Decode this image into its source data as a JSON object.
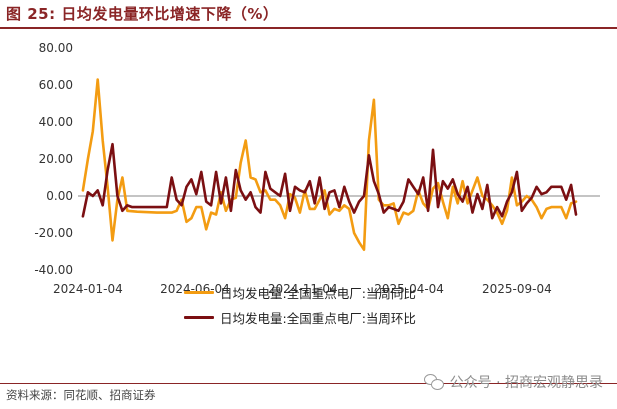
{
  "header": {
    "title": "图 25: 日均发电量环比增速下降（%）"
  },
  "footer": {
    "source": "资料来源：同花顺、招商证券",
    "watermark": "公众号 · 招商宏观静思录"
  },
  "chart_data": {
    "type": "line",
    "title": "",
    "xlabel": "",
    "ylabel": "",
    "ylim": [
      -40,
      80
    ],
    "yticks": [
      "-40.00",
      "-20.00",
      "0.00",
      "20.00",
      "40.00",
      "60.00",
      "80.00"
    ],
    "xticks": [
      "2024-01-04",
      "2024-06-04",
      "2024-11-04",
      "2025-04-04",
      "2025-09-04"
    ],
    "xlim": [
      "2023-12-21",
      "2025-12-31"
    ],
    "legend_position": "bottom",
    "grid": false,
    "series": [
      {
        "name": "日均发电量:全国重点电厂:当周同比",
        "color": "#f39c12",
        "points": [
          [
            "2023-12-28",
            3
          ],
          [
            "2024-01-04",
            20
          ],
          [
            "2024-01-11",
            35
          ],
          [
            "2024-01-18",
            63
          ],
          [
            "2024-01-25",
            30
          ],
          [
            "2024-02-01",
            5
          ],
          [
            "2024-02-08",
            -24
          ],
          [
            "2024-02-15",
            -2
          ],
          [
            "2024-02-22",
            10
          ],
          [
            "2024-02-29",
            -8
          ],
          [
            "2024-03-14",
            -8.5
          ],
          [
            "2024-04-11",
            -9
          ],
          [
            "2024-05-02",
            -9
          ],
          [
            "2024-05-09",
            -8
          ],
          [
            "2024-05-16",
            -2
          ],
          [
            "2024-05-23",
            -14
          ],
          [
            "2024-05-30",
            -12
          ],
          [
            "2024-06-06",
            -6
          ],
          [
            "2024-06-13",
            -6
          ],
          [
            "2024-06-20",
            -18
          ],
          [
            "2024-06-27",
            -9
          ],
          [
            "2024-07-04",
            -10
          ],
          [
            "2024-07-11",
            2
          ],
          [
            "2024-07-18",
            -8
          ],
          [
            "2024-07-25",
            -2
          ],
          [
            "2024-08-01",
            -1
          ],
          [
            "2024-08-08",
            18
          ],
          [
            "2024-08-15",
            30
          ],
          [
            "2024-08-22",
            10
          ],
          [
            "2024-08-29",
            9
          ],
          [
            "2024-09-05",
            2
          ],
          [
            "2024-09-12",
            3
          ],
          [
            "2024-09-19",
            -2
          ],
          [
            "2024-09-26",
            -2
          ],
          [
            "2024-10-03",
            -5
          ],
          [
            "2024-10-10",
            -12
          ],
          [
            "2024-10-17",
            1
          ],
          [
            "2024-10-24",
            -1
          ],
          [
            "2024-10-31",
            -9
          ],
          [
            "2024-11-07",
            3
          ],
          [
            "2024-11-14",
            -7
          ],
          [
            "2024-11-21",
            -7
          ],
          [
            "2024-11-28",
            -2
          ],
          [
            "2024-12-05",
            3
          ],
          [
            "2024-12-12",
            -10
          ],
          [
            "2024-12-19",
            -7
          ],
          [
            "2024-12-26",
            -8
          ],
          [
            "2025-01-02",
            -5
          ],
          [
            "2025-01-09",
            -7
          ],
          [
            "2025-01-16",
            -20
          ],
          [
            "2025-01-23",
            -25
          ],
          [
            "2025-01-30",
            -29
          ],
          [
            "2025-02-06",
            30
          ],
          [
            "2025-02-13",
            52
          ],
          [
            "2025-02-20",
            -2
          ],
          [
            "2025-02-27",
            -5
          ],
          [
            "2025-03-06",
            -5
          ],
          [
            "2025-03-13",
            -4
          ],
          [
            "2025-03-20",
            -15
          ],
          [
            "2025-03-27",
            -9
          ],
          [
            "2025-04-03",
            -10
          ],
          [
            "2025-04-10",
            -8
          ],
          [
            "2025-04-17",
            3
          ],
          [
            "2025-04-24",
            -4
          ],
          [
            "2025-05-01",
            -7
          ],
          [
            "2025-05-08",
            4
          ],
          [
            "2025-05-15",
            7
          ],
          [
            "2025-05-22",
            -3
          ],
          [
            "2025-05-29",
            -12
          ],
          [
            "2025-06-05",
            5
          ],
          [
            "2025-06-12",
            -4
          ],
          [
            "2025-06-19",
            8
          ],
          [
            "2025-06-26",
            -4
          ],
          [
            "2025-07-03",
            3
          ],
          [
            "2025-07-10",
            10
          ],
          [
            "2025-07-17",
            0
          ],
          [
            "2025-07-24",
            -2
          ],
          [
            "2025-07-31",
            -5
          ],
          [
            "2025-08-07",
            -9
          ],
          [
            "2025-08-14",
            -15
          ],
          [
            "2025-08-21",
            -8
          ],
          [
            "2025-08-28",
            10
          ],
          [
            "2025-09-04",
            -5
          ],
          [
            "2025-09-11",
            -3
          ],
          [
            "2025-09-18",
            0
          ],
          [
            "2025-09-25",
            -2
          ],
          [
            "2025-10-02",
            -6
          ],
          [
            "2025-10-09",
            -12
          ],
          [
            "2025-10-16",
            -7
          ],
          [
            "2025-10-23",
            -6
          ],
          [
            "2025-11-06",
            -6
          ],
          [
            "2025-11-13",
            -12
          ],
          [
            "2025-11-20",
            -4
          ],
          [
            "2025-11-27",
            -3
          ]
        ]
      },
      {
        "name": "日均发电量:全国重点电厂:当周环比",
        "color": "#7b0f12",
        "points": [
          [
            "2023-12-28",
            -11
          ],
          [
            "2024-01-04",
            2
          ],
          [
            "2024-01-11",
            0
          ],
          [
            "2024-01-18",
            3
          ],
          [
            "2024-01-25",
            -5
          ],
          [
            "2024-02-01",
            14
          ],
          [
            "2024-02-08",
            28
          ],
          [
            "2024-02-15",
            0
          ],
          [
            "2024-02-22",
            -8
          ],
          [
            "2024-02-29",
            -5
          ],
          [
            "2024-03-07",
            -6
          ],
          [
            "2024-04-25",
            -6
          ],
          [
            "2024-05-02",
            10
          ],
          [
            "2024-05-09",
            -2
          ],
          [
            "2024-05-16",
            -5
          ],
          [
            "2024-05-23",
            5
          ],
          [
            "2024-05-30",
            9
          ],
          [
            "2024-06-06",
            1
          ],
          [
            "2024-06-13",
            13
          ],
          [
            "2024-06-20",
            -3
          ],
          [
            "2024-06-27",
            -5
          ],
          [
            "2024-07-04",
            13
          ],
          [
            "2024-07-11",
            -4
          ],
          [
            "2024-07-18",
            10
          ],
          [
            "2024-07-25",
            -8
          ],
          [
            "2024-08-01",
            14
          ],
          [
            "2024-08-08",
            3
          ],
          [
            "2024-08-15",
            -2
          ],
          [
            "2024-08-22",
            2
          ],
          [
            "2024-08-29",
            -6
          ],
          [
            "2024-09-05",
            -9
          ],
          [
            "2024-09-12",
            13
          ],
          [
            "2024-09-19",
            4
          ],
          [
            "2024-09-26",
            2
          ],
          [
            "2024-10-03",
            0
          ],
          [
            "2024-10-10",
            12
          ],
          [
            "2024-10-17",
            -8
          ],
          [
            "2024-10-24",
            5
          ],
          [
            "2024-10-31",
            3
          ],
          [
            "2024-11-07",
            2
          ],
          [
            "2024-11-14",
            8
          ],
          [
            "2024-11-21",
            -4
          ],
          [
            "2024-11-28",
            10
          ],
          [
            "2024-12-05",
            -7
          ],
          [
            "2024-12-12",
            2
          ],
          [
            "2024-12-19",
            3
          ],
          [
            "2024-12-26",
            -6
          ],
          [
            "2025-01-02",
            5
          ],
          [
            "2025-01-09",
            -3
          ],
          [
            "2025-01-16",
            -9
          ],
          [
            "2025-01-23",
            -3
          ],
          [
            "2025-01-30",
            0
          ],
          [
            "2025-02-06",
            22
          ],
          [
            "2025-02-13",
            8
          ],
          [
            "2025-02-20",
            1
          ],
          [
            "2025-02-27",
            -9
          ],
          [
            "2025-03-06",
            -6
          ],
          [
            "2025-03-13",
            -7
          ],
          [
            "2025-03-20",
            -8
          ],
          [
            "2025-03-27",
            -3
          ],
          [
            "2025-04-03",
            9
          ],
          [
            "2025-04-10",
            5
          ],
          [
            "2025-04-17",
            1
          ],
          [
            "2025-04-24",
            10
          ],
          [
            "2025-05-01",
            -8
          ],
          [
            "2025-05-08",
            25
          ],
          [
            "2025-05-15",
            -6
          ],
          [
            "2025-05-22",
            8
          ],
          [
            "2025-05-29",
            4
          ],
          [
            "2025-06-05",
            9
          ],
          [
            "2025-06-12",
            1
          ],
          [
            "2025-06-19",
            -3
          ],
          [
            "2025-06-26",
            5
          ],
          [
            "2025-07-03",
            -9
          ],
          [
            "2025-07-10",
            1
          ],
          [
            "2025-07-17",
            -7
          ],
          [
            "2025-07-24",
            6
          ],
          [
            "2025-07-31",
            -12
          ],
          [
            "2025-08-07",
            -6
          ],
          [
            "2025-08-14",
            -11
          ],
          [
            "2025-08-21",
            -3
          ],
          [
            "2025-08-28",
            2
          ],
          [
            "2025-09-04",
            13
          ],
          [
            "2025-09-11",
            -8
          ],
          [
            "2025-09-18",
            -4
          ],
          [
            "2025-09-25",
            -1
          ],
          [
            "2025-10-02",
            5
          ],
          [
            "2025-10-09",
            1
          ],
          [
            "2025-10-16",
            2
          ],
          [
            "2025-10-23",
            5
          ],
          [
            "2025-11-06",
            5
          ],
          [
            "2025-11-13",
            -2
          ],
          [
            "2025-11-20",
            6
          ],
          [
            "2025-11-27",
            -10
          ]
        ]
      }
    ]
  }
}
